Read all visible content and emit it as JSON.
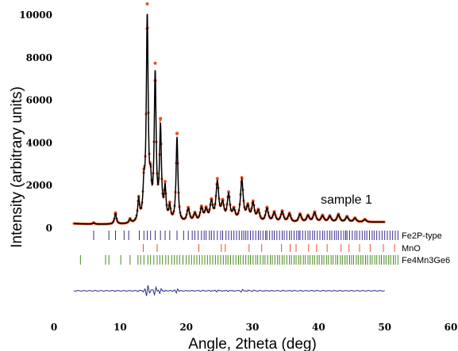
{
  "chart_data": {
    "type": "line",
    "xlabel": "Angle, 2theta (deg)",
    "ylabel": "Intensity (arbitrary units)",
    "xlim": [
      0,
      60
    ],
    "ylim": [
      0,
      10000
    ],
    "x_ticks": [
      0,
      10,
      20,
      30,
      40,
      50,
      60
    ],
    "y_ticks": [
      0,
      2000,
      4000,
      6000,
      8000,
      10000
    ],
    "annotation": "sample 1",
    "colors": {
      "calculated": "#000000",
      "observed": "#e8542a",
      "fe2p_ticks": "#3a2e8e",
      "mno_ticks": "#e8542a",
      "fe4mn3ge6_ticks": "#4a8a1e",
      "difference": "#2a2a8a"
    },
    "peaks": [
      {
        "x": 6.0,
        "h": 60
      },
      {
        "x": 9.3,
        "h": 500
      },
      {
        "x": 11.5,
        "h": 180
      },
      {
        "x": 12.8,
        "h": 1000
      },
      {
        "x": 13.6,
        "h": 1400
      },
      {
        "x": 14.1,
        "h": 9500
      },
      {
        "x": 14.6,
        "h": 1300
      },
      {
        "x": 15.3,
        "h": 6800
      },
      {
        "x": 16.1,
        "h": 4300
      },
      {
        "x": 16.8,
        "h": 1500
      },
      {
        "x": 17.5,
        "h": 700
      },
      {
        "x": 18.6,
        "h": 4000
      },
      {
        "x": 20.3,
        "h": 650
      },
      {
        "x": 21.3,
        "h": 400
      },
      {
        "x": 22.3,
        "h": 650
      },
      {
        "x": 23.0,
        "h": 550
      },
      {
        "x": 23.8,
        "h": 900
      },
      {
        "x": 24.7,
        "h": 1850
      },
      {
        "x": 25.5,
        "h": 800
      },
      {
        "x": 26.4,
        "h": 1250
      },
      {
        "x": 27.2,
        "h": 500
      },
      {
        "x": 28.4,
        "h": 1950
      },
      {
        "x": 29.3,
        "h": 650
      },
      {
        "x": 30.1,
        "h": 850
      },
      {
        "x": 30.9,
        "h": 500
      },
      {
        "x": 32.2,
        "h": 650
      },
      {
        "x": 33.3,
        "h": 450
      },
      {
        "x": 34.5,
        "h": 500
      },
      {
        "x": 35.6,
        "h": 400
      },
      {
        "x": 37.2,
        "h": 380
      },
      {
        "x": 38.4,
        "h": 300
      },
      {
        "x": 39.4,
        "h": 450
      },
      {
        "x": 40.6,
        "h": 300
      },
      {
        "x": 41.7,
        "h": 280
      },
      {
        "x": 43.0,
        "h": 350
      },
      {
        "x": 44.3,
        "h": 250
      },
      {
        "x": 45.5,
        "h": 180
      },
      {
        "x": 47.0,
        "h": 120
      }
    ],
    "phases": [
      {
        "name_main": "Fe",
        "parts": [
          [
            "Fe",
            ""
          ],
          [
            "2",
            "sub"
          ],
          [
            "P-type",
            ""
          ]
        ],
        "positions": [
          6.0,
          8.3,
          9.3,
          10.6,
          11.3,
          12.9,
          13.6,
          14.1,
          14.6,
          15.3,
          16.1,
          16.8,
          17.5,
          18.6,
          19.6,
          20.3,
          20.9,
          21.3,
          21.8,
          22.3,
          22.7,
          23.0,
          23.5,
          23.8,
          24.2,
          24.7,
          25.2,
          25.5,
          26.0,
          26.4,
          26.8,
          27.2,
          27.6,
          28.0,
          28.4,
          28.7,
          29.0,
          29.3,
          29.7,
          30.1,
          30.5,
          30.9,
          31.2,
          31.6,
          32.0,
          32.2,
          32.6,
          33.0,
          33.3,
          33.7,
          34.1,
          34.5,
          34.8,
          35.2,
          35.6,
          35.9,
          36.3,
          36.7,
          37.0,
          37.2,
          37.6,
          38.0,
          38.4,
          38.7,
          39.1,
          39.4,
          39.8,
          40.2,
          40.6,
          40.9,
          41.3,
          41.7,
          42.0,
          42.4,
          42.7,
          43.0,
          43.4,
          43.8,
          44.1,
          44.3,
          44.7,
          45.1,
          45.5,
          45.8,
          46.2,
          46.6,
          47.0,
          47.3,
          47.7,
          48.1,
          48.4,
          48.8,
          49.2,
          49.6,
          50.0,
          50.4,
          50.8,
          51.2,
          51.6,
          52.0
        ]
      },
      {
        "name_main": "MnO",
        "parts": [
          [
            "MnO",
            ""
          ]
        ],
        "positions": [
          13.5,
          15.6,
          21.9,
          25.3,
          25.9,
          29.5,
          31.4,
          34.4,
          35.7,
          36.6,
          38.5,
          39.7,
          41.3,
          43.4,
          44.6,
          46.2,
          47.8,
          49.8,
          51.5
        ]
      },
      {
        "name_main": "Fe",
        "parts": [
          [
            "Fe",
            ""
          ],
          [
            "4",
            "sub"
          ],
          [
            "Mn",
            ""
          ],
          [
            "3",
            "sub"
          ],
          [
            "Ge",
            ""
          ],
          [
            "6",
            "sub"
          ]
        ],
        "positions": [
          4.0,
          7.8,
          8.3,
          10.1,
          11.5,
          12.7,
          13.1,
          13.6,
          14.2,
          14.6,
          15.1,
          15.6,
          16.0,
          16.4,
          16.9,
          17.3,
          17.8,
          18.2,
          18.6,
          19.0,
          19.5,
          20.0,
          20.4,
          20.8,
          21.2,
          21.6,
          22.0,
          22.4,
          22.8,
          23.2,
          23.6,
          24.0,
          24.4,
          24.8,
          25.2,
          25.6,
          26.0,
          26.3,
          26.7,
          27.1,
          27.5,
          27.9,
          28.2,
          28.6,
          29.0,
          29.4,
          29.7,
          30.1,
          30.5,
          30.8,
          31.2,
          31.6,
          31.9,
          32.3,
          32.7,
          33.0,
          33.4,
          33.8,
          34.1,
          34.5,
          34.8,
          35.2,
          35.6,
          35.9,
          36.3,
          36.6,
          37.0,
          37.3,
          37.7,
          38.0,
          38.4,
          38.7,
          39.1,
          39.4,
          39.8,
          40.1,
          40.5,
          40.8,
          41.2,
          41.5,
          41.9,
          42.2,
          42.6,
          42.9,
          43.3,
          43.6,
          44.0,
          44.3,
          44.7,
          45.0,
          45.3,
          45.7,
          46.0,
          46.4,
          46.7,
          47.1,
          47.4,
          47.8,
          48.1,
          48.5,
          48.8,
          49.2,
          49.5,
          49.9,
          50.2,
          50.6,
          50.9,
          51.3,
          51.6,
          52.0
        ]
      }
    ],
    "phase_labels": [
      "Fe2P-type",
      "MnO",
      "Fe4Mn3Ge6"
    ]
  }
}
